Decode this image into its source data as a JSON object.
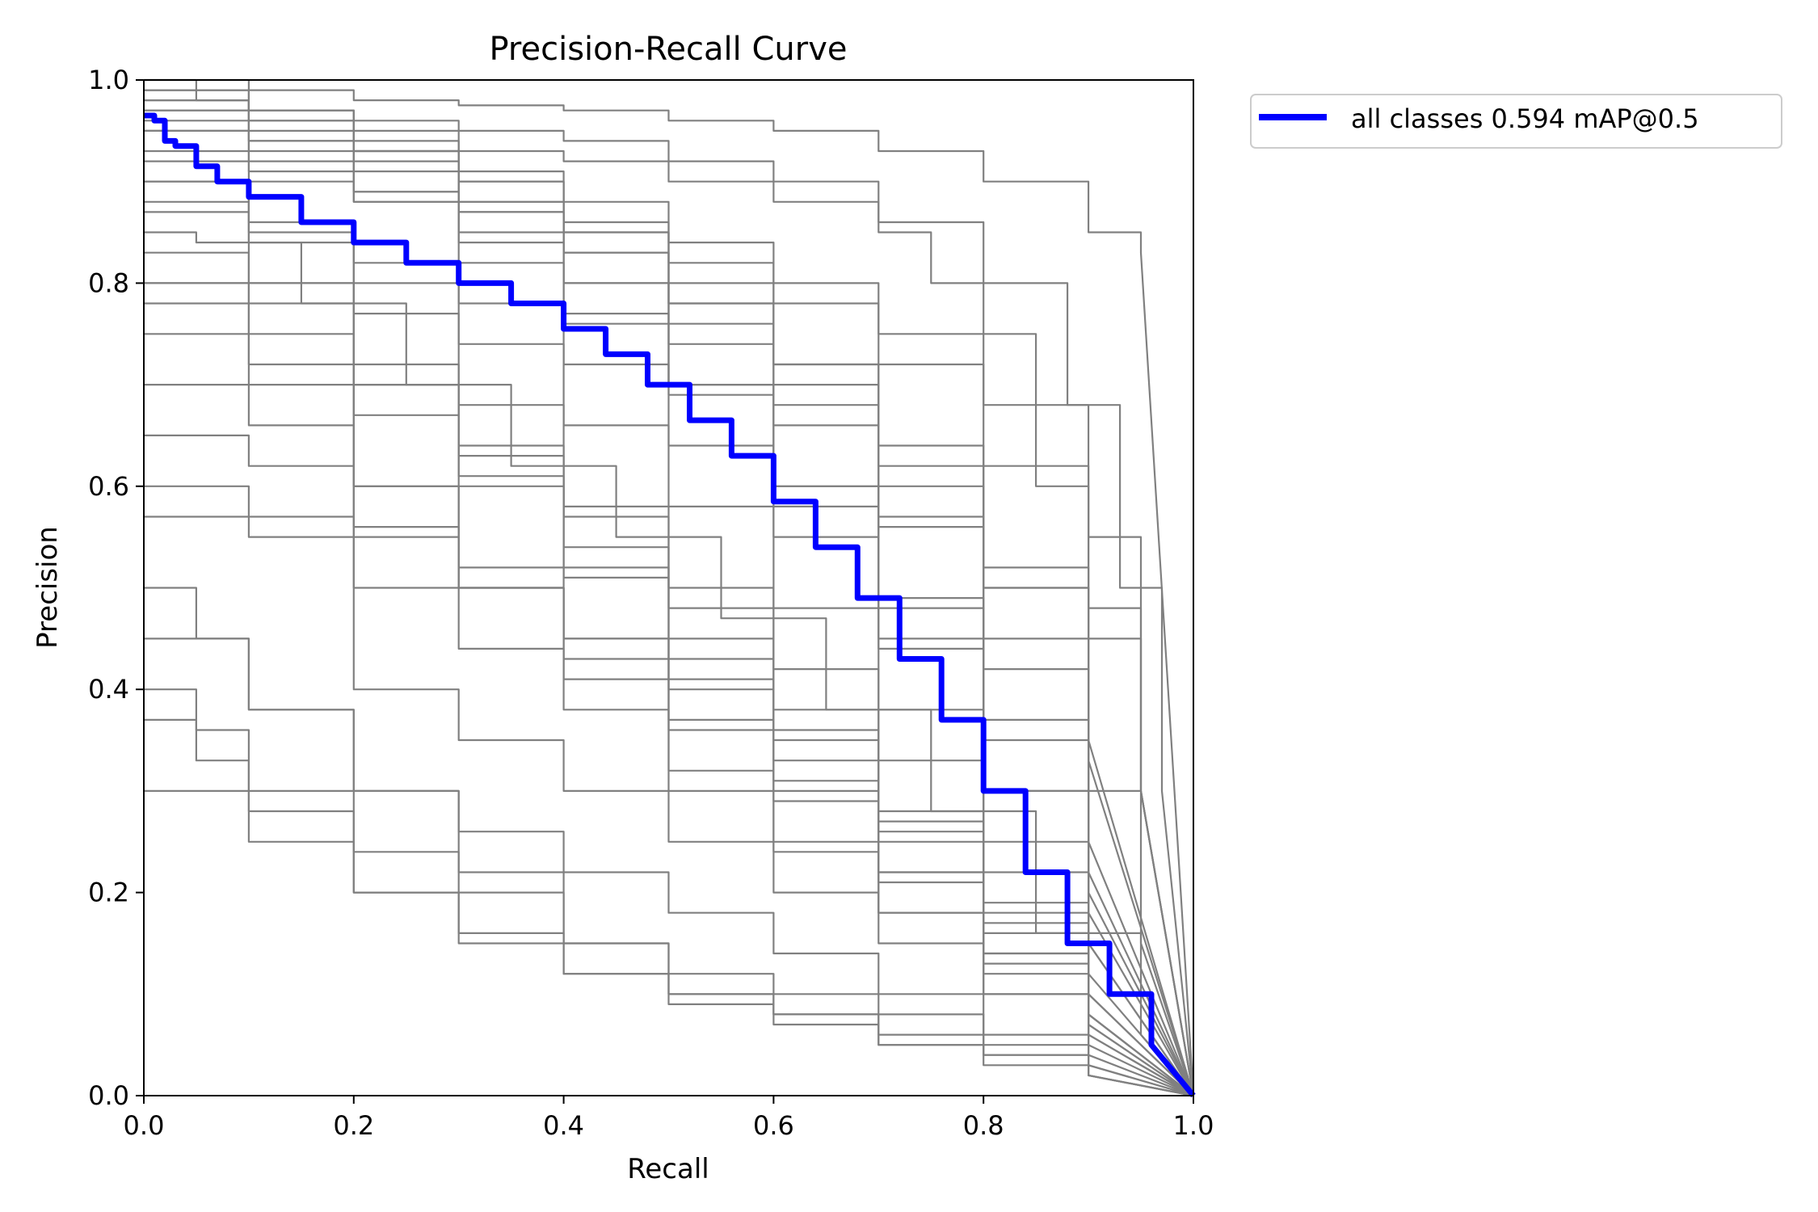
{
  "chart_data": {
    "type": "line",
    "title": "Precision-Recall Curve",
    "xlabel": "Recall",
    "ylabel": "Precision",
    "xlim": [
      0,
      1
    ],
    "ylim": [
      0,
      1
    ],
    "xticks": [
      "0.0",
      "0.2",
      "0.4",
      "0.6",
      "0.8",
      "1.0"
    ],
    "yticks": [
      "0.0",
      "0.2",
      "0.4",
      "0.6",
      "0.8",
      "1.0"
    ],
    "grid": false,
    "legend": {
      "placement": "outside-top-right",
      "entries": [
        "all classes 0.594 mAP@0.5"
      ]
    },
    "colors": {
      "mean": "#0000ff",
      "class": "#808080"
    },
    "series": [
      {
        "name": "all classes 0.594 mAP@0.5",
        "color": "#0000ff",
        "x": [
          0,
          0.01,
          0.02,
          0.03,
          0.05,
          0.07,
          0.1,
          0.15,
          0.2,
          0.25,
          0.3,
          0.35,
          0.4,
          0.44,
          0.48,
          0.52,
          0.56,
          0.6,
          0.64,
          0.68,
          0.72,
          0.76,
          0.8,
          0.84,
          0.88,
          0.92,
          0.96,
          1.0
        ],
        "y": [
          0.965,
          0.96,
          0.94,
          0.935,
          0.915,
          0.9,
          0.885,
          0.86,
          0.84,
          0.82,
          0.8,
          0.78,
          0.755,
          0.73,
          0.7,
          0.665,
          0.63,
          0.585,
          0.54,
          0.49,
          0.43,
          0.37,
          0.3,
          0.22,
          0.15,
          0.1,
          0.05,
          0.0
        ]
      },
      {
        "x": [
          0,
          0.1,
          0.2,
          0.3,
          0.4,
          0.5,
          0.6,
          0.7,
          0.8,
          0.9,
          0.95,
          1.0
        ],
        "y": [
          1.0,
          0.99,
          0.98,
          0.975,
          0.97,
          0.96,
          0.95,
          0.93,
          0.9,
          0.85,
          0.83,
          0.0
        ]
      },
      {
        "x": [
          0,
          0.1,
          0.2,
          0.3,
          0.4,
          0.5,
          0.6,
          0.7,
          0.8,
          0.88,
          0.93,
          0.97,
          1.0
        ],
        "y": [
          0.98,
          0.97,
          0.96,
          0.95,
          0.94,
          0.92,
          0.9,
          0.86,
          0.8,
          0.68,
          0.5,
          0.3,
          0.0
        ]
      },
      {
        "x": [
          0,
          0.1,
          0.2,
          0.3,
          0.4,
          0.5,
          0.6,
          0.7,
          0.75,
          0.8,
          0.85,
          0.9,
          0.95,
          1.0
        ],
        "y": [
          0.97,
          0.96,
          0.95,
          0.93,
          0.92,
          0.9,
          0.88,
          0.85,
          0.8,
          0.75,
          0.68,
          0.55,
          0.3,
          0.0
        ]
      },
      {
        "x": [
          0,
          0.1,
          0.2,
          0.3,
          0.4,
          0.5,
          0.6,
          0.7,
          0.8,
          0.85,
          0.9,
          0.95,
          1.0
        ],
        "y": [
          0.95,
          0.94,
          0.93,
          0.91,
          0.88,
          0.84,
          0.8,
          0.75,
          0.68,
          0.6,
          0.48,
          0.3,
          0.0
        ]
      },
      {
        "x": [
          0,
          0.1,
          0.2,
          0.3,
          0.4,
          0.5,
          0.6,
          0.7,
          0.8,
          0.9,
          0.95,
          1.0
        ],
        "y": [
          0.9,
          0.9,
          0.89,
          0.87,
          0.85,
          0.82,
          0.78,
          0.72,
          0.62,
          0.45,
          0.3,
          0.0
        ]
      },
      {
        "x": [
          0,
          0.05,
          0.1,
          0.2,
          0.3,
          0.4,
          0.5,
          0.6,
          0.7,
          0.8,
          0.9,
          0.95,
          1.0
        ],
        "y": [
          1.0,
          0.98,
          0.96,
          0.93,
          0.9,
          0.86,
          0.8,
          0.72,
          0.62,
          0.5,
          0.3,
          0.15,
          0.0
        ]
      },
      {
        "x": [
          0,
          0.1,
          0.2,
          0.3,
          0.4,
          0.5,
          0.6,
          0.7,
          0.8,
          0.9,
          1.0
        ],
        "y": [
          0.93,
          0.91,
          0.88,
          0.85,
          0.8,
          0.74,
          0.66,
          0.56,
          0.42,
          0.22,
          0.0
        ]
      },
      {
        "x": [
          0,
          0.1,
          0.2,
          0.3,
          0.4,
          0.5,
          0.6,
          0.7,
          0.8,
          0.9,
          1.0
        ],
        "y": [
          0.95,
          0.92,
          0.88,
          0.82,
          0.76,
          0.7,
          0.6,
          0.48,
          0.35,
          0.18,
          0.0
        ]
      },
      {
        "x": [
          0,
          0.1,
          0.2,
          0.3,
          0.4,
          0.5,
          0.6,
          0.7,
          0.8,
          0.9,
          1.0
        ],
        "y": [
          0.9,
          0.86,
          0.82,
          0.78,
          0.72,
          0.64,
          0.55,
          0.44,
          0.3,
          0.15,
          0.0
        ]
      },
      {
        "x": [
          0,
          0.1,
          0.2,
          0.3,
          0.4,
          0.5,
          0.6,
          0.7,
          0.8,
          0.9,
          1.0
        ],
        "y": [
          0.88,
          0.84,
          0.8,
          0.74,
          0.66,
          0.58,
          0.48,
          0.38,
          0.25,
          0.12,
          0.0
        ]
      },
      {
        "x": [
          0,
          0.05,
          0.15,
          0.25,
          0.35,
          0.45,
          0.55,
          0.65,
          0.75,
          0.85,
          0.95,
          1.0
        ],
        "y": [
          0.85,
          0.84,
          0.78,
          0.7,
          0.62,
          0.55,
          0.47,
          0.38,
          0.28,
          0.16,
          0.06,
          0.0
        ]
      },
      {
        "x": [
          0,
          0.1,
          0.2,
          0.3,
          0.4,
          0.5,
          0.6,
          0.7,
          0.8,
          0.9,
          1.0
        ],
        "y": [
          0.8,
          0.75,
          0.7,
          0.64,
          0.57,
          0.5,
          0.42,
          0.33,
          0.22,
          0.1,
          0.0
        ]
      },
      {
        "x": [
          0,
          0.1,
          0.2,
          0.3,
          0.4,
          0.5,
          0.6,
          0.7,
          0.8,
          0.9,
          1.0
        ],
        "y": [
          0.75,
          0.72,
          0.67,
          0.6,
          0.52,
          0.43,
          0.35,
          0.26,
          0.17,
          0.08,
          0.0
        ]
      },
      {
        "x": [
          0,
          0.1,
          0.2,
          0.3,
          0.4,
          0.5,
          0.6,
          0.7,
          0.8,
          0.9,
          1.0
        ],
        "y": [
          0.7,
          0.66,
          0.6,
          0.52,
          0.45,
          0.37,
          0.29,
          0.21,
          0.13,
          0.06,
          0.0
        ]
      },
      {
        "x": [
          0,
          0.1,
          0.2,
          0.3,
          0.4,
          0.5,
          0.6,
          0.7,
          0.8,
          0.9,
          1.0
        ],
        "y": [
          0.65,
          0.62,
          0.56,
          0.5,
          0.43,
          0.36,
          0.3,
          0.22,
          0.14,
          0.07,
          0.0
        ]
      },
      {
        "x": [
          0,
          0.1,
          0.2,
          0.3,
          0.4,
          0.5,
          0.6,
          0.7,
          0.8,
          0.9,
          1.0
        ],
        "y": [
          0.6,
          0.55,
          0.5,
          0.44,
          0.38,
          0.3,
          0.24,
          0.18,
          0.1,
          0.04,
          0.0
        ]
      },
      {
        "x": [
          0,
          0.1,
          0.2,
          0.3,
          0.4,
          0.5,
          0.6,
          0.7,
          0.8,
          0.9,
          1.0
        ],
        "y": [
          0.57,
          0.57,
          0.55,
          0.5,
          0.45,
          0.4,
          0.33,
          0.25,
          0.16,
          0.08,
          0.0
        ]
      },
      {
        "x": [
          0,
          0.05,
          0.1,
          0.2,
          0.3,
          0.4,
          0.5,
          0.6,
          0.7,
          0.8,
          0.9,
          1.0
        ],
        "y": [
          0.5,
          0.45,
          0.38,
          0.3,
          0.26,
          0.22,
          0.18,
          0.14,
          0.1,
          0.06,
          0.03,
          0.0
        ]
      },
      {
        "x": [
          0,
          0.05,
          0.1,
          0.2,
          0.3,
          0.4,
          0.5,
          0.6,
          0.7,
          0.8,
          0.9,
          1.0
        ],
        "y": [
          0.4,
          0.36,
          0.3,
          0.24,
          0.2,
          0.15,
          0.12,
          0.1,
          0.08,
          0.05,
          0.03,
          0.0
        ]
      },
      {
        "x": [
          0,
          0.05,
          0.1,
          0.2,
          0.3,
          0.4,
          0.5,
          0.6,
          0.7,
          0.8,
          0.9,
          1.0
        ],
        "y": [
          0.37,
          0.33,
          0.28,
          0.2,
          0.15,
          0.12,
          0.1,
          0.08,
          0.06,
          0.04,
          0.02,
          0.0
        ]
      },
      {
        "x": [
          0,
          0.1,
          0.2,
          0.3,
          0.4,
          0.5,
          0.6,
          0.7,
          0.8,
          0.9,
          1.0
        ],
        "y": [
          0.45,
          0.38,
          0.3,
          0.22,
          0.15,
          0.1,
          0.08,
          0.05,
          0.03,
          0.02,
          0.0
        ]
      },
      {
        "x": [
          0,
          0.05,
          0.2,
          0.3,
          0.4,
          0.5,
          0.6,
          0.7,
          0.8,
          0.9,
          1.0
        ],
        "y": [
          0.8,
          0.8,
          0.4,
          0.35,
          0.3,
          0.25,
          0.2,
          0.15,
          0.1,
          0.05,
          0.0
        ]
      },
      {
        "x": [
          0,
          0.1,
          0.2,
          0.3,
          0.4,
          0.5,
          0.6,
          0.7,
          0.8,
          0.9,
          1.0
        ],
        "y": [
          0.3,
          0.25,
          0.2,
          0.16,
          0.12,
          0.09,
          0.07,
          0.05,
          0.04,
          0.02,
          0.0
        ]
      },
      {
        "x": [
          0,
          0.1,
          0.2,
          0.3,
          0.4,
          0.5,
          0.6,
          0.7,
          0.8,
          0.9,
          1.0
        ],
        "y": [
          0.99,
          0.97,
          0.94,
          0.9,
          0.85,
          0.78,
          0.7,
          0.6,
          0.5,
          0.35,
          0.0
        ]
      },
      {
        "x": [
          0,
          0.1,
          0.2,
          0.3,
          0.4,
          0.5,
          0.6,
          0.7,
          0.8,
          0.9,
          1.0
        ],
        "y": [
          0.92,
          0.85,
          0.77,
          0.68,
          0.58,
          0.48,
          0.38,
          0.28,
          0.18,
          0.08,
          0.0
        ]
      },
      {
        "x": [
          0,
          0.1,
          0.2,
          0.3,
          0.4,
          0.5,
          0.6,
          0.7,
          0.8,
          0.9,
          1.0
        ],
        "y": [
          0.98,
          0.95,
          0.92,
          0.88,
          0.83,
          0.76,
          0.68,
          0.57,
          0.45,
          0.25,
          0.0
        ]
      },
      {
        "x": [
          0,
          0.1,
          0.2,
          0.3,
          0.4,
          0.5,
          0.6,
          0.7,
          0.8,
          0.9,
          1.0
        ],
        "y": [
          0.87,
          0.8,
          0.72,
          0.63,
          0.54,
          0.45,
          0.36,
          0.27,
          0.19,
          0.1,
          0.0
        ]
      },
      {
        "x": [
          0,
          0.1,
          0.2,
          0.3,
          0.4,
          0.5,
          0.6,
          0.7,
          0.8,
          0.9,
          1.0
        ],
        "y": [
          0.96,
          0.94,
          0.91,
          0.87,
          0.83,
          0.78,
          0.72,
          0.64,
          0.52,
          0.33,
          0.0
        ]
      },
      {
        "x": [
          0,
          0.1,
          0.2,
          0.3,
          0.4,
          0.5,
          0.6,
          0.7,
          0.8,
          0.9,
          1.0
        ],
        "y": [
          0.78,
          0.7,
          0.6,
          0.5,
          0.41,
          0.32,
          0.25,
          0.18,
          0.12,
          0.06,
          0.0
        ]
      },
      {
        "x": [
          0,
          0.1,
          0.2,
          0.3,
          0.4,
          0.5,
          0.6,
          0.7,
          0.8,
          0.9,
          1.0
        ],
        "y": [
          0.99,
          0.97,
          0.93,
          0.88,
          0.8,
          0.7,
          0.58,
          0.45,
          0.3,
          0.15,
          0.0
        ]
      },
      {
        "x": [
          0,
          0.1,
          0.2,
          0.3,
          0.4,
          0.5,
          0.6,
          0.7,
          0.8,
          0.9,
          1.0
        ],
        "y": [
          0.83,
          0.78,
          0.7,
          0.61,
          0.51,
          0.41,
          0.31,
          0.22,
          0.14,
          0.07,
          0.0
        ]
      },
      {
        "x": [
          0,
          0.1,
          0.2,
          0.3,
          0.4,
          0.5,
          0.6,
          0.7,
          0.8,
          0.9,
          1.0
        ],
        "y": [
          0.97,
          0.93,
          0.89,
          0.84,
          0.77,
          0.69,
          0.6,
          0.49,
          0.37,
          0.2,
          0.0
        ]
      }
    ]
  }
}
